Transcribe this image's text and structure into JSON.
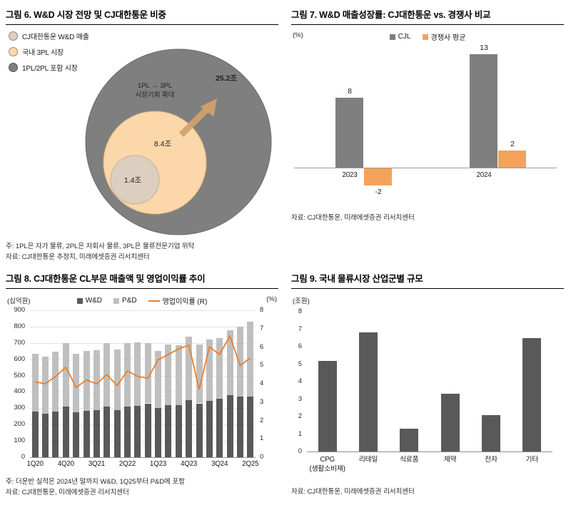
{
  "chart_data": [
    {
      "id": "fig6",
      "type": "bubble",
      "title": "그림 6. W&D 시장 전망 및 CJ대한통운 비중",
      "legend": [
        {
          "label": "CJ대한통운 W&D 매출",
          "color": "#DCCFC0"
        },
        {
          "label": "국내 3PL 시장",
          "color": "#FBD7A9"
        },
        {
          "label": "1PL/2PL 포함 시장",
          "color": "#7F7F7F"
        }
      ],
      "bubbles": [
        {
          "label": "25.2조",
          "value_trillion_krw": 25.2,
          "color": "#7F7F7F"
        },
        {
          "label": "8.4조",
          "value_trillion_krw": 8.4,
          "color": "#FBD7A9"
        },
        {
          "label": "1.4조",
          "value_trillion_krw": 1.4,
          "color": "#DCCFC0"
        }
      ],
      "annotation": [
        "1PL → 3PL",
        "시장기회 확대"
      ],
      "note": "주: 1PL은 자가 물류, 2PL은 자회사 물류, 3PL은 물류전문기업 위탁",
      "source": "자료: CJ대한통운 추정치, 미래에셋증권 리서치센터"
    },
    {
      "id": "fig7",
      "type": "bar",
      "title": "그림 7. W&D 매출성장률: CJ대한통운 vs. 경쟁사 비교",
      "unit": "(%)",
      "categories": [
        "2023",
        "2024"
      ],
      "series": [
        {
          "name": "CJL",
          "values": [
            8,
            13
          ],
          "color": "#7F7F7F"
        },
        {
          "name": "경쟁사 평균",
          "values": [
            -2,
            2
          ],
          "color": "#F3A359"
        }
      ],
      "source": "자료: CJ대한통운, 미래에셋증권 리서치센터"
    },
    {
      "id": "fig8",
      "type": "stacked-bar-line",
      "title": "그림 8. CJ대한통운 CL부문 매출액 및 영업이익률 추이",
      "unit_left": "(십억원)",
      "unit_right": "(%)",
      "categories": [
        "1Q20",
        "2Q20",
        "3Q20",
        "4Q20",
        "1Q21",
        "2Q21",
        "3Q21",
        "4Q21",
        "1Q22",
        "2Q22",
        "3Q22",
        "4Q22",
        "1Q23",
        "2Q23",
        "3Q23",
        "4Q23",
        "1Q24",
        "2Q24",
        "3Q24",
        "4Q24",
        "1Q25",
        "2Q25"
      ],
      "x_tick_labels": [
        "1Q20",
        "4Q20",
        "3Q21",
        "2Q22",
        "1Q23",
        "4Q23",
        "3Q24",
        "2Q25"
      ],
      "series": [
        {
          "name": "W&D",
          "values": [
            280,
            265,
            280,
            310,
            275,
            285,
            290,
            310,
            290,
            310,
            315,
            330,
            300,
            320,
            320,
            350,
            330,
            345,
            360,
            380,
            370,
            370
          ],
          "color": "#595959"
        },
        {
          "name": "P&D",
          "values": [
            355,
            350,
            365,
            390,
            360,
            365,
            365,
            390,
            370,
            390,
            390,
            370,
            350,
            370,
            365,
            390,
            360,
            375,
            370,
            400,
            430,
            460
          ],
          "color": "#BFBFBF"
        }
      ],
      "line": {
        "name": "영업이익률 (R)",
        "values": [
          4.1,
          4.0,
          4.4,
          4.9,
          3.8,
          4.2,
          4.0,
          4.5,
          3.9,
          4.7,
          4.4,
          4.3,
          5.3,
          5.6,
          5.9,
          6.1,
          3.7,
          6.0,
          5.6,
          6.6,
          5.0,
          5.4
        ],
        "color": "#EB7D2A"
      },
      "ylim_left": [
        0,
        900
      ],
      "ylim_right": [
        0,
        8
      ],
      "note": "주: 더운반 실적은 2024년 말까지 W&D, 1Q25부터 P&D에 포함",
      "source": "자료: CJ대한통운, 미래에셋증권 리서치센터"
    },
    {
      "id": "fig9",
      "type": "bar",
      "title": "그림 9. 국내 물류시장 산업군별 규모",
      "unit": "(조원)",
      "categories": [
        "CPG",
        "리테일",
        "식료품",
        "제약",
        "전자",
        "기타"
      ],
      "category_sublabels": [
        "(생활소비재)",
        "",
        "",
        "",
        "",
        ""
      ],
      "values": [
        5.2,
        6.8,
        1.3,
        3.3,
        2.1,
        6.5
      ],
      "color": "#595959",
      "ylim": [
        0,
        8
      ],
      "source": "자료: CJ대한통운, 미래에셋증권 리서치센터"
    }
  ]
}
